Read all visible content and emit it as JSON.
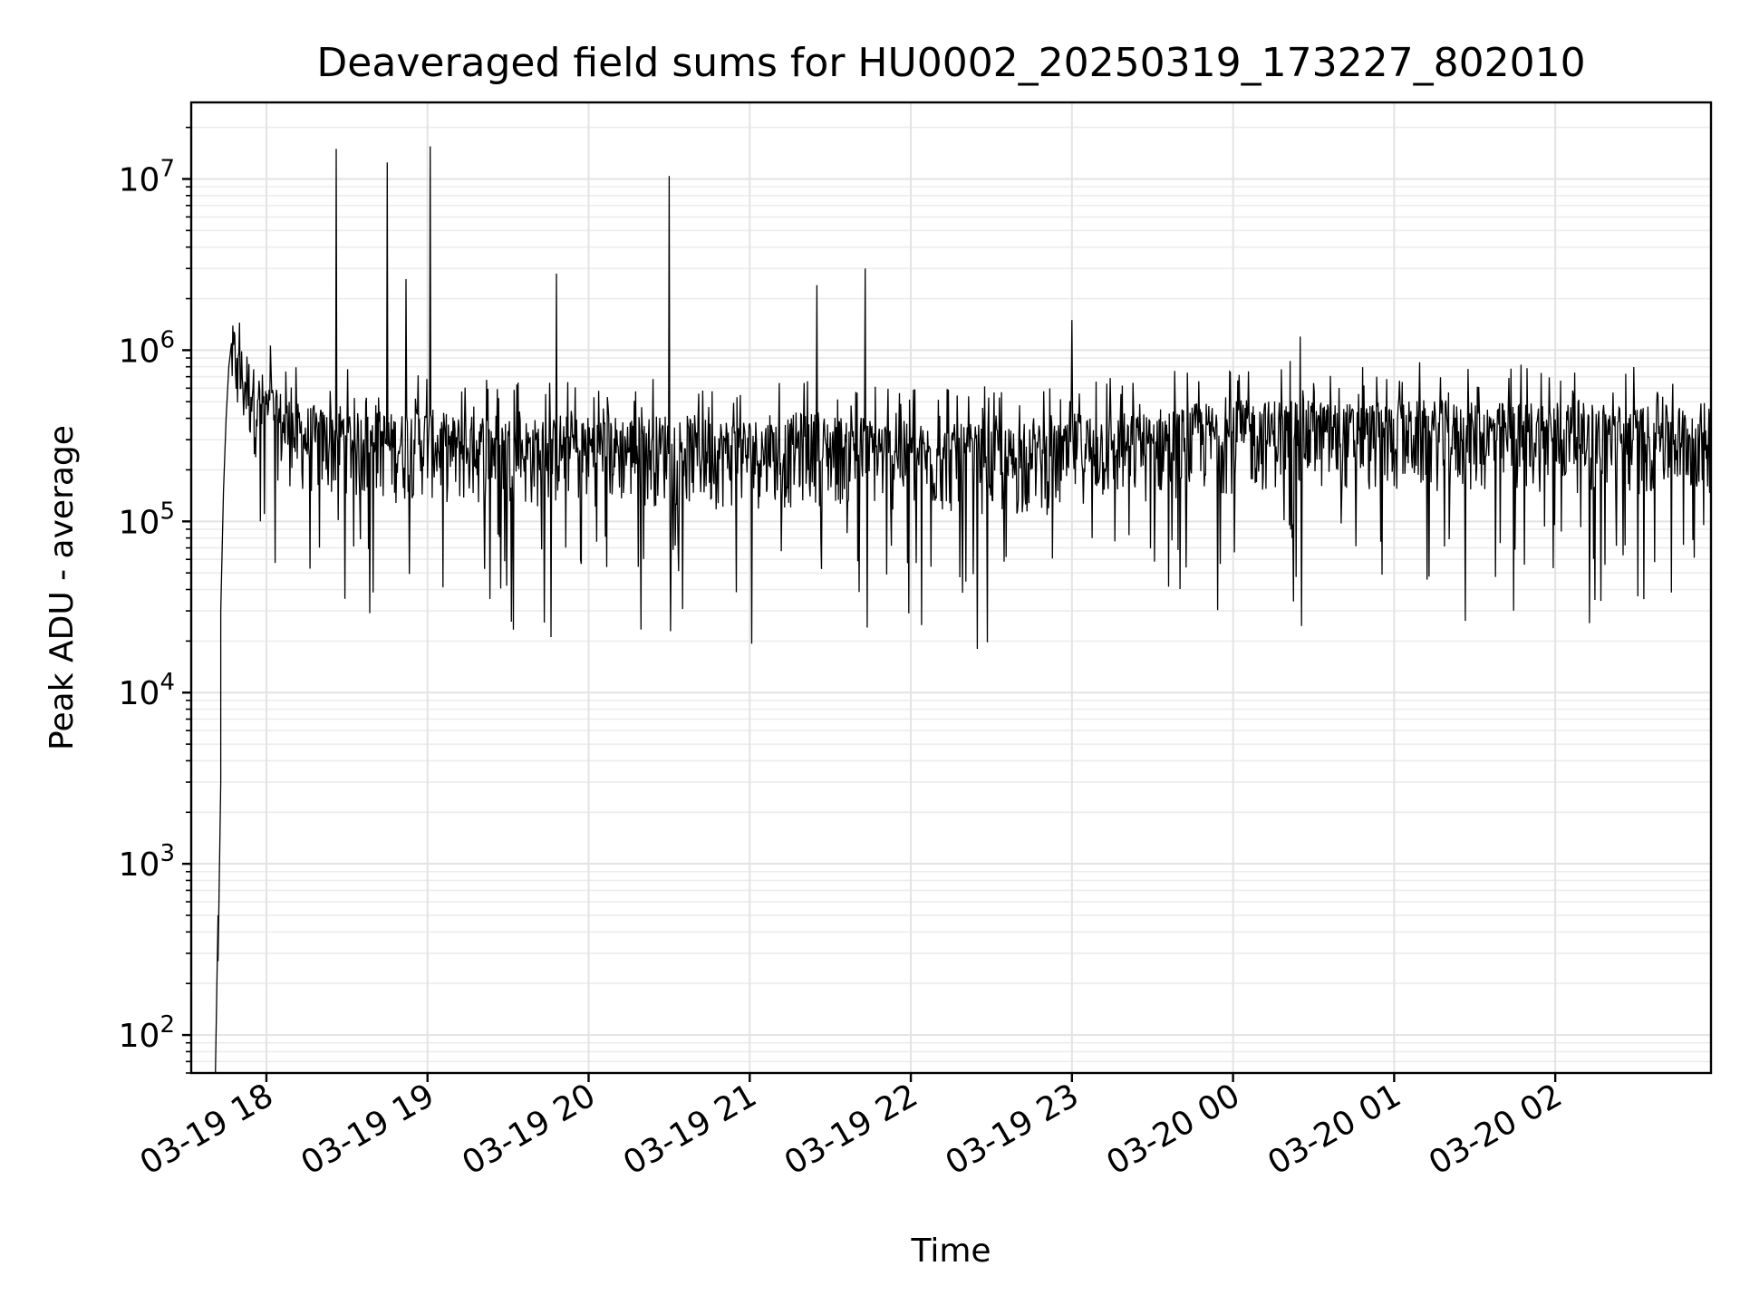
{
  "chart_data": {
    "type": "line",
    "title": "Deaveraged field sums for HU0002_20250319_173227_802010",
    "xlabel": "Time",
    "ylabel": "Peak ADU - average",
    "x_scale": "time",
    "y_scale": "log",
    "xlim": [
      "2025-03-19 17:32",
      "2025-03-20 02:58"
    ],
    "ylim": [
      60,
      28000000
    ],
    "grid": true,
    "legend": false,
    "line_color": "#000000",
    "x_ticks": [
      "03-19 18",
      "03-19 19",
      "03-19 20",
      "03-19 21",
      "03-19 22",
      "03-19 23",
      "03-20 00",
      "03-20 01",
      "03-20 02"
    ],
    "x_tick_times": [
      "2025-03-19 18:00",
      "2025-03-19 19:00",
      "2025-03-19 20:00",
      "2025-03-19 21:00",
      "2025-03-19 22:00",
      "2025-03-19 23:00",
      "2025-03-20 00:00",
      "2025-03-20 01:00",
      "2025-03-20 02:00"
    ],
    "y_ticks": [
      {
        "value": 100,
        "base": "10",
        "exp": "2"
      },
      {
        "value": 1000,
        "base": "10",
        "exp": "3"
      },
      {
        "value": 10000,
        "base": "10",
        "exp": "4"
      },
      {
        "value": 100000,
        "base": "10",
        "exp": "5"
      },
      {
        "value": 1000000,
        "base": "10",
        "exp": "6"
      },
      {
        "value": 10000000,
        "base": "10",
        "exp": "7"
      }
    ],
    "series": [
      {
        "x": [
          "2025-03-19 17:41",
          "2025-03-19 17:42",
          "2025-03-19 17:42",
          "2025-03-19 17:43",
          "2025-03-19 17:43",
          "2025-03-19 17:44",
          "2025-03-19 17:45",
          "2025-03-19 17:46",
          "2025-03-19 17:47",
          "2025-03-19 17:49",
          "2025-03-19 17:51",
          "2025-03-19 17:53",
          "2025-03-19 17:55",
          "2025-03-19 17:57",
          "2025-03-19 18:00",
          "2025-03-19 18:03",
          "2025-03-19 18:06",
          "2025-03-19 18:10",
          "2025-03-19 18:14",
          "2025-03-19 18:18",
          "2025-03-19 18:22",
          "2025-03-19 18:26",
          "2025-03-19 18:30",
          "2025-03-19 18:33",
          "2025-03-19 18:36",
          "2025-03-19 18:40",
          "2025-03-19 18:45",
          "2025-03-19 18:50",
          "2025-03-19 18:52",
          "2025-03-19 18:55",
          "2025-03-19 19:01",
          "2025-03-19 19:03",
          "2025-03-19 19:08",
          "2025-03-19 19:15",
          "2025-03-19 19:20",
          "2025-03-19 19:27",
          "2025-03-19 19:35",
          "2025-03-19 19:42",
          "2025-03-19 19:48",
          "2025-03-19 19:50",
          "2025-03-19 19:56",
          "2025-03-19 20:05",
          "2025-03-19 20:15",
          "2025-03-19 20:27",
          "2025-03-19 20:30",
          "2025-03-19 20:40",
          "2025-03-19 20:48",
          "2025-03-19 20:56",
          "2025-03-19 21:05",
          "2025-03-19 21:16",
          "2025-03-19 21:25",
          "2025-03-19 21:35",
          "2025-03-19 21:43",
          "2025-03-19 21:50",
          "2025-03-19 22:00",
          "2025-03-19 22:10",
          "2025-03-19 22:20",
          "2025-03-19 22:28",
          "2025-03-19 22:35",
          "2025-03-19 22:45",
          "2025-03-19 22:52",
          "2025-03-19 23:00",
          "2025-03-19 23:15",
          "2025-03-19 23:30",
          "2025-03-19 23:45",
          "2025-03-20 00:00",
          "2025-03-20 00:15",
          "2025-03-20 00:25",
          "2025-03-20 00:35",
          "2025-03-20 00:50",
          "2025-03-20 01:05",
          "2025-03-20 01:20",
          "2025-03-20 01:35",
          "2025-03-20 01:50",
          "2025-03-20 02:05",
          "2025-03-20 02:20",
          "2025-03-20 02:35",
          "2025-03-20 02:50",
          "2025-03-20 02:58"
        ],
        "y": [
          60,
          500,
          270,
          3000,
          30000,
          150000,
          400000,
          800000,
          1100000,
          900000,
          700000,
          650000,
          600000,
          520000,
          480000,
          420000,
          380000,
          350000,
          320000,
          310000,
          300000,
          15000000,
          320000,
          300000,
          280000,
          290000,
          12500000,
          280000,
          2600000,
          300000,
          15500000,
          290000,
          280000,
          270000,
          290000,
          280000,
          270000,
          260000,
          2800000,
          280000,
          270000,
          280000,
          270000,
          280000,
          10400000,
          270000,
          260000,
          270000,
          260000,
          280000,
          2400000,
          270000,
          3000000,
          260000,
          250000,
          240000,
          250000,
          240000,
          230000,
          250000,
          240000,
          1500000,
          280000,
          300000,
          320000,
          330000,
          340000,
          1200000,
          330000,
          320000,
          340000,
          330000,
          320000,
          340000,
          330000,
          320000,
          310000,
          320000,
          330000
        ]
      }
    ],
    "noise": {
      "lower_extreme": 18000,
      "upper_typical_factor": 2.5
    }
  }
}
